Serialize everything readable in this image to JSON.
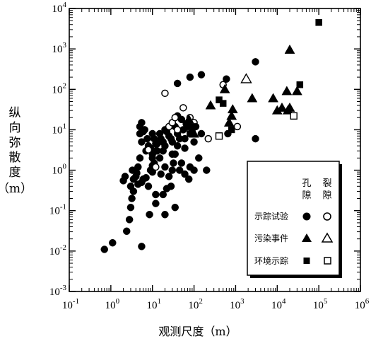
{
  "chart_data": {
    "type": "scatter",
    "xlabel": "观测尺度（m）",
    "ylabel_chars": [
      "纵",
      "向",
      "弥",
      "散",
      "度",
      "（m）"
    ],
    "x_log": true,
    "y_log": true,
    "xlim": [
      0.1,
      1000000
    ],
    "ylim": [
      0.001,
      10000
    ],
    "x_tick_labels": [
      {
        "base": "10",
        "exp": "-1"
      },
      {
        "base": "10",
        "exp": "0"
      },
      {
        "base": "10",
        "exp": "1"
      },
      {
        "base": "10",
        "exp": "2"
      },
      {
        "base": "10",
        "exp": "3"
      },
      {
        "base": "10",
        "exp": "4"
      },
      {
        "base": "10",
        "exp": "5"
      },
      {
        "base": "10",
        "exp": "6"
      }
    ],
    "y_tick_labels": [
      {
        "base": "10",
        "exp": "-3"
      },
      {
        "base": "10",
        "exp": "-2"
      },
      {
        "base": "10",
        "exp": "-1"
      },
      {
        "base": "10",
        "exp": "0"
      },
      {
        "base": "10",
        "exp": "1"
      },
      {
        "base": "10",
        "exp": "2"
      },
      {
        "base": "10",
        "exp": "3"
      },
      {
        "base": "10",
        "exp": "4"
      }
    ],
    "legend": {
      "col_headers": [
        "孔隙",
        "裂隙"
      ],
      "col_header_chars": [
        [
          "孔",
          "隙"
        ],
        [
          "裂",
          "隙"
        ]
      ],
      "rows": [
        "示踪试验",
        "污染事件",
        "环境示踪"
      ]
    },
    "series": [
      {
        "name": "示踪试验-孔隙",
        "marker": "circle",
        "filled": true,
        "points": [
          [
            0.7,
            0.011
          ],
          [
            1.1,
            0.016
          ],
          [
            2.4,
            0.031
          ],
          [
            2.8,
            0.06
          ],
          [
            5.5,
            0.013
          ],
          [
            3,
            0.12
          ],
          [
            3.2,
            0.2
          ],
          [
            3.5,
            0.3
          ],
          [
            4.5,
            0.45
          ],
          [
            8.5,
            0.08
          ],
          [
            12,
            0.15
          ],
          [
            12,
            0.25
          ],
          [
            18,
            0.25
          ],
          [
            20,
            0.08
          ],
          [
            35,
            0.12
          ],
          [
            2,
            0.55
          ],
          [
            2.2,
            0.7
          ],
          [
            3,
            0.4
          ],
          [
            3.3,
            1.0
          ],
          [
            3.5,
            0.6
          ],
          [
            4,
            0.7
          ],
          [
            4.2,
            0.85
          ],
          [
            4.5,
            1.2
          ],
          [
            5,
            2.0
          ],
          [
            5.5,
            0.5
          ],
          [
            6,
            0.6
          ],
          [
            7,
            0.65
          ],
          [
            8,
            0.4
          ],
          [
            9,
            1.0
          ],
          [
            10,
            0.9
          ],
          [
            10,
            1.3
          ],
          [
            10,
            2.0
          ],
          [
            11,
            1.5
          ],
          [
            12,
            4.5
          ],
          [
            13,
            3.0
          ],
          [
            15,
            2.0
          ],
          [
            16,
            0.8
          ],
          [
            18,
            3.0
          ],
          [
            20,
            1.2
          ],
          [
            22,
            0.35
          ],
          [
            25,
            0.7
          ],
          [
            28,
            0.4
          ],
          [
            30,
            1.0
          ],
          [
            32,
            1.5
          ],
          [
            35,
            2.5
          ],
          [
            40,
            4.0
          ],
          [
            45,
            1.0
          ],
          [
            50,
            1.5
          ],
          [
            60,
            0.8
          ],
          [
            75,
            0.6
          ],
          [
            80,
            1.2
          ],
          [
            100,
            1.0
          ],
          [
            130,
            2.0
          ],
          [
            200,
            1.0
          ],
          [
            5,
            8
          ],
          [
            5,
            12
          ],
          [
            5.5,
            15
          ],
          [
            5.5,
            5
          ],
          [
            6,
            9
          ],
          [
            6.5,
            10
          ],
          [
            7,
            3.0
          ],
          [
            7.5,
            6
          ],
          [
            8,
            4
          ],
          [
            9,
            3.5
          ],
          [
            10,
            2.5
          ],
          [
            10,
            8
          ],
          [
            11,
            6
          ],
          [
            12,
            3
          ],
          [
            13,
            4.5
          ],
          [
            15,
            8
          ],
          [
            16,
            6
          ],
          [
            18,
            5
          ],
          [
            20,
            4
          ],
          [
            20,
            10
          ],
          [
            22,
            9
          ],
          [
            25,
            7
          ],
          [
            28,
            6
          ],
          [
            30,
            5
          ],
          [
            35,
            12
          ],
          [
            40,
            8
          ],
          [
            45,
            6
          ],
          [
            50,
            18
          ],
          [
            55,
            10
          ],
          [
            60,
            6
          ],
          [
            70,
            12
          ],
          [
            80,
            16
          ],
          [
            90,
            9
          ],
          [
            100,
            5
          ],
          [
            110,
            12
          ],
          [
            150,
            8
          ],
          [
            30,
            2.5
          ],
          [
            40,
            22
          ],
          [
            40,
            140
          ],
          [
            80,
            200
          ],
          [
            150,
            230
          ],
          [
            600,
            180
          ],
          [
            3000,
            480
          ],
          [
            60,
            3.5
          ],
          [
            65,
            14
          ],
          [
            650,
            8
          ],
          [
            3000,
            6
          ]
        ]
      },
      {
        "name": "示踪试验-裂隙",
        "marker": "circle",
        "filled": false,
        "points": [
          [
            8,
            3.2
          ],
          [
            12,
            1.2
          ],
          [
            20,
            80
          ],
          [
            25,
            12
          ],
          [
            30,
            15
          ],
          [
            35,
            20
          ],
          [
            40,
            10
          ],
          [
            55,
            35
          ],
          [
            80,
            20
          ],
          [
            100,
            12
          ],
          [
            100,
            15
          ],
          [
            220,
            6
          ],
          [
            500,
            130
          ],
          [
            1100,
            12
          ]
        ]
      },
      {
        "name": "污染事件-孔隙",
        "marker": "triangle",
        "filled": true,
        "points": [
          [
            75,
            18
          ],
          [
            100,
            8
          ],
          [
            250,
            40
          ],
          [
            550,
            100
          ],
          [
            700,
            15
          ],
          [
            800,
            22
          ],
          [
            850,
            32
          ],
          [
            2500,
            60
          ],
          [
            8000,
            60
          ],
          [
            10000,
            30
          ],
          [
            13000,
            35
          ],
          [
            17000,
            90
          ],
          [
            18000,
            30
          ],
          [
            20000,
            35
          ],
          [
            20000,
            950
          ],
          [
            30000,
            90
          ]
        ]
      },
      {
        "name": "污染事件-裂隙",
        "marker": "triangle",
        "filled": false,
        "points": [
          [
            1800,
            180
          ]
        ]
      },
      {
        "name": "环境示踪-孔隙",
        "marker": "square",
        "filled": true,
        "points": [
          [
            80,
            8
          ],
          [
            100,
            12
          ],
          [
            400,
            55
          ],
          [
            500,
            45
          ],
          [
            800,
            10
          ],
          [
            35000,
            130
          ],
          [
            100000,
            4500
          ]
        ]
      },
      {
        "name": "环境示踪-裂隙",
        "marker": "square",
        "filled": false,
        "points": [
          [
            400,
            7
          ],
          [
            25000,
            22
          ]
        ]
      }
    ]
  }
}
